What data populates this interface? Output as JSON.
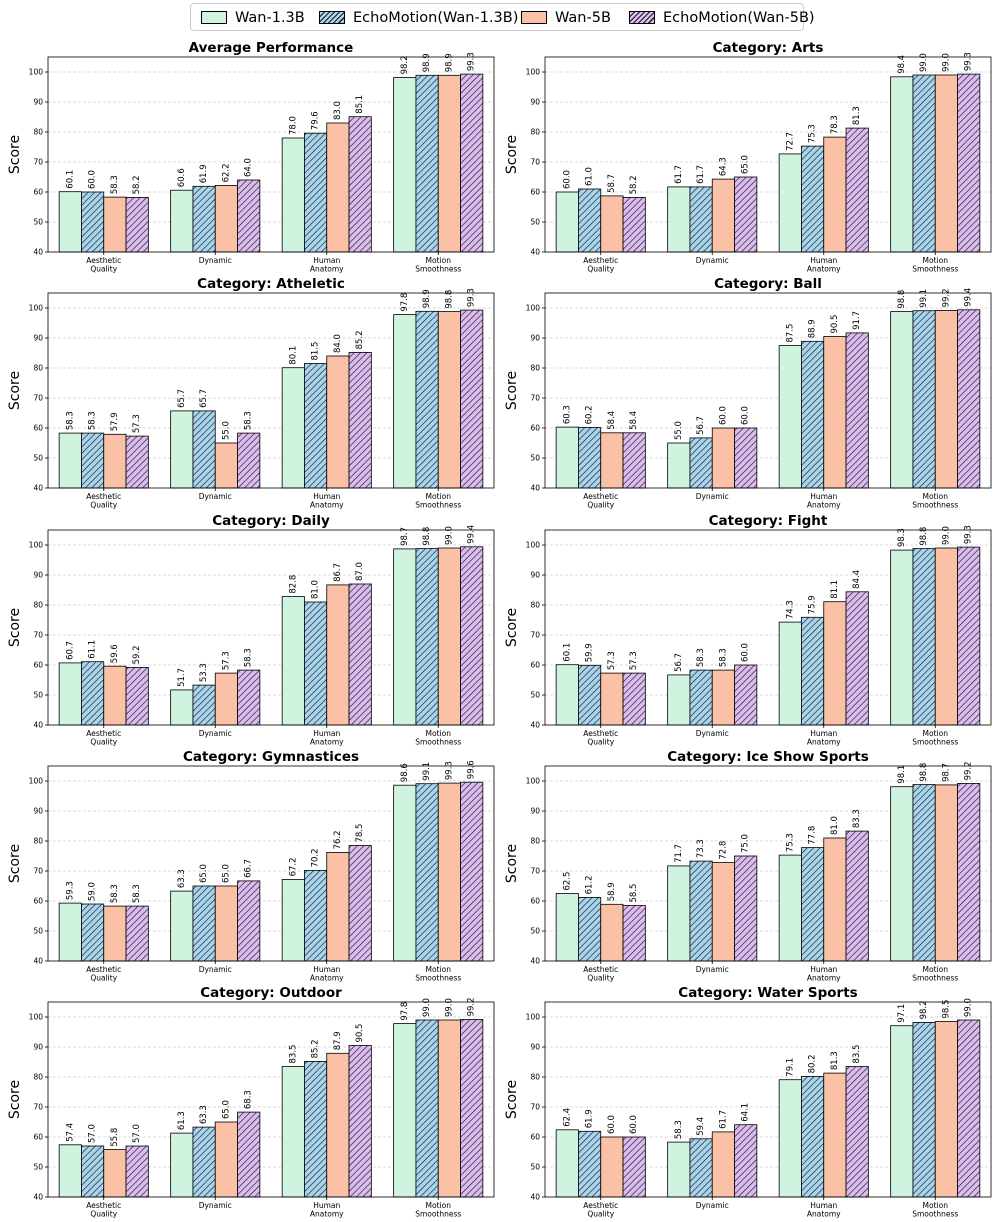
{
  "legend": [
    {
      "label": "Wan-1.3B",
      "color": "#cff3df",
      "hatch": false
    },
    {
      "label": "EchoMotion(Wan-1.3B)",
      "color": "#a8d5ee",
      "hatch": true
    },
    {
      "label": "Wan-5B",
      "color": "#fbc1a6",
      "hatch": false
    },
    {
      "label": "EchoMotion(Wan-5B)",
      "color": "#dcbcf0",
      "hatch": true
    }
  ],
  "chart_data": [
    {
      "type": "bar",
      "title": "Average Performance",
      "ylabel": "Score",
      "ylim": [
        40,
        105
      ],
      "yticks": [
        40,
        50,
        60,
        70,
        80,
        90,
        100
      ],
      "categories": [
        "Aesthetic\nQuality",
        "Dynamic",
        "Human\nAnatomy",
        "Motion\nSmoothness"
      ],
      "series": [
        {
          "name": "Wan-1.3B",
          "values": [
            60.1,
            60.6,
            78.0,
            98.2
          ]
        },
        {
          "name": "EchoMotion(Wan-1.3B)",
          "values": [
            60.0,
            61.9,
            79.6,
            98.9
          ]
        },
        {
          "name": "Wan-5B",
          "values": [
            58.3,
            62.2,
            83.0,
            98.9
          ]
        },
        {
          "name": "EchoMotion(Wan-5B)",
          "values": [
            58.2,
            64.0,
            85.1,
            99.3
          ]
        }
      ]
    },
    {
      "type": "bar",
      "title": "Category: Arts",
      "ylabel": "Score",
      "ylim": [
        40,
        105
      ],
      "yticks": [
        40,
        50,
        60,
        70,
        80,
        90,
        100
      ],
      "categories": [
        "Aesthetic\nQuality",
        "Dynamic",
        "Human\nAnatomy",
        "Motion\nSmoothness"
      ],
      "series": [
        {
          "name": "Wan-1.3B",
          "values": [
            60.0,
            61.7,
            72.7,
            98.4
          ]
        },
        {
          "name": "EchoMotion(Wan-1.3B)",
          "values": [
            61.0,
            61.7,
            75.3,
            99.0
          ]
        },
        {
          "name": "Wan-5B",
          "values": [
            58.7,
            64.3,
            78.3,
            99.0
          ]
        },
        {
          "name": "EchoMotion(Wan-5B)",
          "values": [
            58.2,
            65.0,
            81.3,
            99.3
          ]
        }
      ]
    },
    {
      "type": "bar",
      "title": "Category: Atheletic",
      "ylabel": "Score",
      "ylim": [
        40,
        105
      ],
      "yticks": [
        40,
        50,
        60,
        70,
        80,
        90,
        100
      ],
      "categories": [
        "Aesthetic\nQuality",
        "Dynamic",
        "Human\nAnatomy",
        "Motion\nSmoothness"
      ],
      "series": [
        {
          "name": "Wan-1.3B",
          "values": [
            58.3,
            65.7,
            80.1,
            97.8
          ]
        },
        {
          "name": "EchoMotion(Wan-1.3B)",
          "values": [
            58.3,
            65.7,
            81.5,
            98.9
          ]
        },
        {
          "name": "Wan-5B",
          "values": [
            57.9,
            55.0,
            84.0,
            98.8
          ]
        },
        {
          "name": "EchoMotion(Wan-5B)",
          "values": [
            57.3,
            58.3,
            85.2,
            99.3
          ]
        }
      ]
    },
    {
      "type": "bar",
      "title": "Category: Ball",
      "ylabel": "Score",
      "ylim": [
        40,
        105
      ],
      "yticks": [
        40,
        50,
        60,
        70,
        80,
        90,
        100
      ],
      "categories": [
        "Aesthetic\nQuality",
        "Dynamic",
        "Human\nAnatomy",
        "Motion\nSmoothness"
      ],
      "series": [
        {
          "name": "Wan-1.3B",
          "values": [
            60.3,
            55.0,
            87.5,
            98.8
          ]
        },
        {
          "name": "EchoMotion(Wan-1.3B)",
          "values": [
            60.2,
            56.7,
            88.9,
            99.1
          ]
        },
        {
          "name": "Wan-5B",
          "values": [
            58.4,
            60.0,
            90.5,
            99.2
          ]
        },
        {
          "name": "EchoMotion(Wan-5B)",
          "values": [
            58.4,
            60.0,
            91.7,
            99.4
          ]
        }
      ]
    },
    {
      "type": "bar",
      "title": "Category: Daily",
      "ylabel": "Score",
      "ylim": [
        40,
        105
      ],
      "yticks": [
        40,
        50,
        60,
        70,
        80,
        90,
        100
      ],
      "categories": [
        "Aesthetic\nQuality",
        "Dynamic",
        "Human\nAnatomy",
        "Motion\nSmoothness"
      ],
      "series": [
        {
          "name": "Wan-1.3B",
          "values": [
            60.7,
            51.7,
            82.8,
            98.7
          ]
        },
        {
          "name": "EchoMotion(Wan-1.3B)",
          "values": [
            61.1,
            53.3,
            81.0,
            98.8
          ]
        },
        {
          "name": "Wan-5B",
          "values": [
            59.6,
            57.3,
            86.7,
            99.0
          ]
        },
        {
          "name": "EchoMotion(Wan-5B)",
          "values": [
            59.2,
            58.3,
            87.0,
            99.4
          ]
        }
      ]
    },
    {
      "type": "bar",
      "title": "Category: Fight",
      "ylabel": "Score",
      "ylim": [
        40,
        105
      ],
      "yticks": [
        40,
        50,
        60,
        70,
        80,
        90,
        100
      ],
      "categories": [
        "Aesthetic\nQuality",
        "Dynamic",
        "Human\nAnatomy",
        "Motion\nSmoothness"
      ],
      "series": [
        {
          "name": "Wan-1.3B",
          "values": [
            60.1,
            56.7,
            74.3,
            98.3
          ]
        },
        {
          "name": "EchoMotion(Wan-1.3B)",
          "values": [
            59.9,
            58.3,
            75.9,
            98.8
          ]
        },
        {
          "name": "Wan-5B",
          "values": [
            57.3,
            58.3,
            81.1,
            99.0
          ]
        },
        {
          "name": "EchoMotion(Wan-5B)",
          "values": [
            57.3,
            60.0,
            84.4,
            99.3
          ]
        }
      ]
    },
    {
      "type": "bar",
      "title": "Category: Gymnastices",
      "ylabel": "Score",
      "ylim": [
        40,
        105
      ],
      "yticks": [
        40,
        50,
        60,
        70,
        80,
        90,
        100
      ],
      "categories": [
        "Aesthetic\nQuality",
        "Dynamic",
        "Human\nAnatomy",
        "Motion\nSmoothness"
      ],
      "series": [
        {
          "name": "Wan-1.3B",
          "values": [
            59.3,
            63.3,
            67.2,
            98.6
          ]
        },
        {
          "name": "EchoMotion(Wan-1.3B)",
          "values": [
            59.0,
            65.0,
            70.2,
            99.1
          ]
        },
        {
          "name": "Wan-5B",
          "values": [
            58.3,
            65.0,
            76.2,
            99.3
          ]
        },
        {
          "name": "EchoMotion(Wan-5B)",
          "values": [
            58.3,
            66.7,
            78.5,
            99.6
          ]
        }
      ]
    },
    {
      "type": "bar",
      "title": "Category: Ice Show Sports",
      "ylabel": "Score",
      "ylim": [
        40,
        105
      ],
      "yticks": [
        40,
        50,
        60,
        70,
        80,
        90,
        100
      ],
      "categories": [
        "Aesthetic\nQuality",
        "Dynamic",
        "Human\nAnatomy",
        "Motion\nSmoothness"
      ],
      "series": [
        {
          "name": "Wan-1.3B",
          "values": [
            62.5,
            71.7,
            75.3,
            98.1
          ]
        },
        {
          "name": "EchoMotion(Wan-1.3B)",
          "values": [
            61.2,
            73.3,
            77.8,
            98.8
          ]
        },
        {
          "name": "Wan-5B",
          "values": [
            58.9,
            72.8,
            81.0,
            98.7
          ]
        },
        {
          "name": "EchoMotion(Wan-5B)",
          "values": [
            58.5,
            75.0,
            83.3,
            99.2
          ]
        }
      ]
    },
    {
      "type": "bar",
      "title": "Category: Outdoor",
      "ylabel": "Score",
      "ylim": [
        40,
        105
      ],
      "yticks": [
        40,
        50,
        60,
        70,
        80,
        90,
        100
      ],
      "categories": [
        "Aesthetic\nQuality",
        "Dynamic",
        "Human\nAnatomy",
        "Motion\nSmoothness"
      ],
      "series": [
        {
          "name": "Wan-1.3B",
          "values": [
            57.4,
            61.3,
            83.5,
            97.8
          ]
        },
        {
          "name": "EchoMotion(Wan-1.3B)",
          "values": [
            57.0,
            63.3,
            85.2,
            99.0
          ]
        },
        {
          "name": "Wan-5B",
          "values": [
            55.8,
            65.0,
            87.9,
            99.0
          ]
        },
        {
          "name": "EchoMotion(Wan-5B)",
          "values": [
            57.0,
            68.3,
            90.5,
            99.2
          ]
        }
      ]
    },
    {
      "type": "bar",
      "title": "Category: Water Sports",
      "ylabel": "Score",
      "ylim": [
        40,
        105
      ],
      "yticks": [
        40,
        50,
        60,
        70,
        80,
        90,
        100
      ],
      "categories": [
        "Aesthetic\nQuality",
        "Dynamic",
        "Human\nAnatomy",
        "Motion\nSmoothness"
      ],
      "series": [
        {
          "name": "Wan-1.3B",
          "values": [
            62.4,
            58.3,
            79.1,
            97.1
          ]
        },
        {
          "name": "EchoMotion(Wan-1.3B)",
          "values": [
            61.9,
            59.4,
            80.2,
            98.2
          ]
        },
        {
          "name": "Wan-5B",
          "values": [
            60.0,
            61.7,
            81.3,
            98.5
          ]
        },
        {
          "name": "EchoMotion(Wan-5B)",
          "values": [
            60.0,
            64.1,
            83.5,
            99.0
          ]
        }
      ]
    }
  ]
}
